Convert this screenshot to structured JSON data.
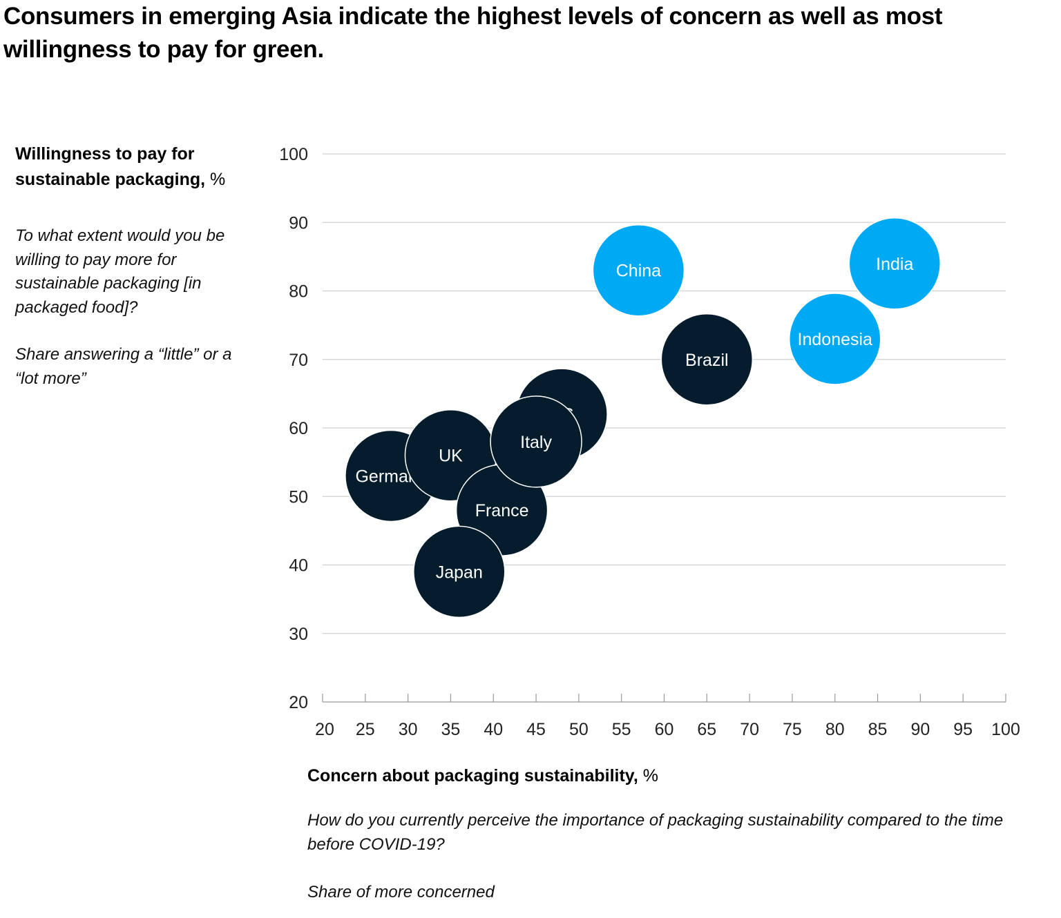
{
  "title": "Consumers in emerging Asia indicate the highest levels of concern as well as most willingness to pay for green.",
  "y_axis": {
    "label_bold": "Willingness to pay for sustainable packaging,",
    "label_unit": "%",
    "question": "To what extent would you be willing to pay more for sustainable packaging [in packaged food]?",
    "share": "Share answering a “little” or a “lot more”"
  },
  "x_axis": {
    "label_bold": "Concern about packaging sustainability,",
    "label_unit": "%",
    "question": "How do you currently perceive the importance of packaging sustainability compared to the time before COVID-19?",
    "share": "Share of more concerned"
  },
  "colors": {
    "emerging_asia": "#00A9F4",
    "other": "#051C2C",
    "gridline": "#d0d0d0",
    "axis": "#999999"
  },
  "chart_data": {
    "type": "scatter",
    "title": "Consumers in emerging Asia indicate the highest levels of concern as well as most willingness to pay for green.",
    "xlabel": "Concern about packaging sustainability, %",
    "ylabel": "Willingness to pay for sustainable packaging, %",
    "xlim": [
      20,
      100
    ],
    "ylim": [
      20,
      100
    ],
    "x_ticks": [
      20,
      25,
      30,
      35,
      40,
      45,
      50,
      55,
      60,
      65,
      70,
      75,
      80,
      85,
      90,
      95,
      100
    ],
    "y_ticks": [
      20,
      30,
      40,
      50,
      60,
      70,
      80,
      90,
      100
    ],
    "grid": true,
    "points": [
      {
        "label": "Germany",
        "x": 28,
        "y": 53,
        "group": "other"
      },
      {
        "label": "UK",
        "x": 35,
        "y": 56,
        "group": "other"
      },
      {
        "label": "US",
        "x": 48,
        "y": 62,
        "group": "other"
      },
      {
        "label": "France",
        "x": 41,
        "y": 48,
        "group": "other"
      },
      {
        "label": "Japan",
        "x": 36,
        "y": 39,
        "group": "other"
      },
      {
        "label": "Italy",
        "x": 45,
        "y": 58,
        "group": "other"
      },
      {
        "label": "Brazil",
        "x": 65,
        "y": 70,
        "group": "other"
      },
      {
        "label": "China",
        "x": 57,
        "y": 83,
        "group": "emerging_asia"
      },
      {
        "label": "Indonesia",
        "x": 80,
        "y": 73,
        "group": "emerging_asia"
      },
      {
        "label": "India",
        "x": 87,
        "y": 84,
        "group": "emerging_asia"
      }
    ]
  }
}
